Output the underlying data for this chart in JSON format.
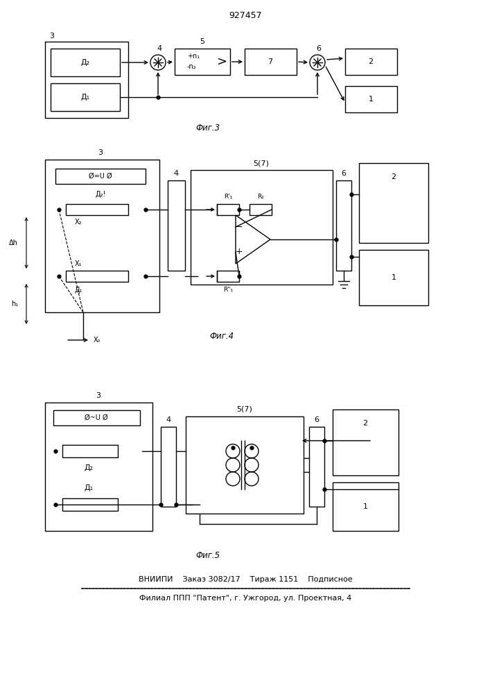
{
  "title": "927457",
  "bg_color": "#ffffff",
  "line_color": "#000000",
  "footer_line1": "ВНИИПИ    Заказ 3082/17    Тираж 1151    Подписное",
  "footer_line2": "Филиал ППП \"Патент\", г. Ужгород, ул. Проектная, 4",
  "fig3_label": "Фиг.3",
  "fig4_label": "Фиг.4",
  "fig5_label": "Фиг.5"
}
